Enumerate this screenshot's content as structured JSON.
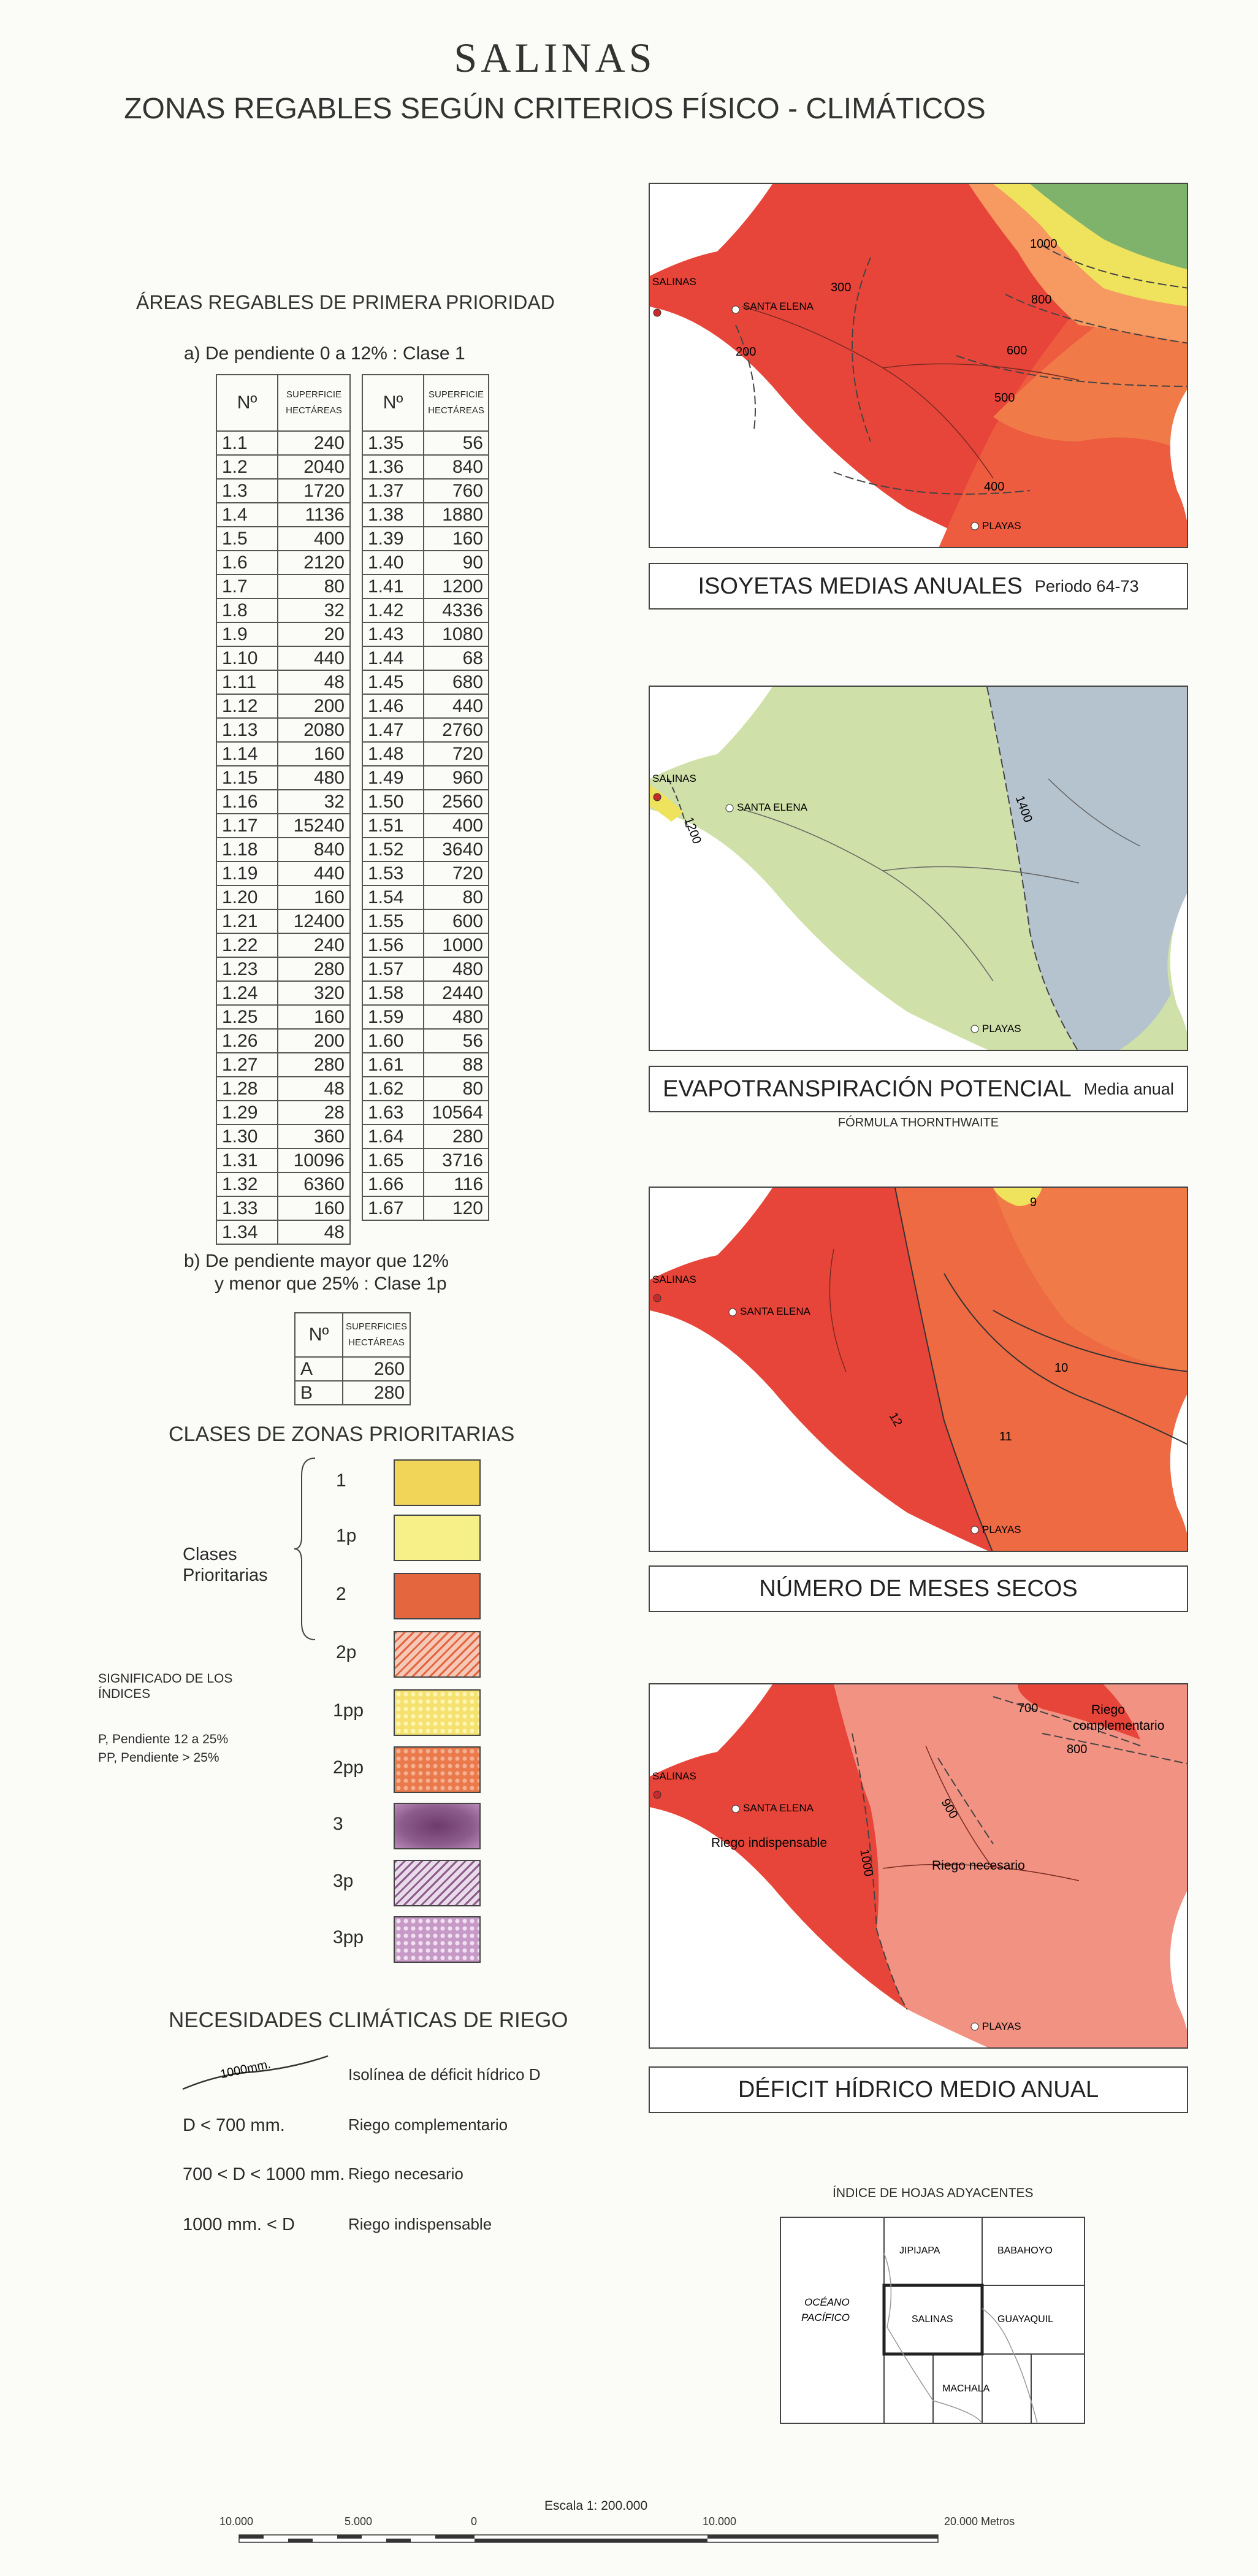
{
  "title": "SALINAS",
  "subtitle": "ZONAS REGABLES SEGÚN CRITERIOS FÍSICO - CLIMÁTICOS",
  "areas": {
    "heading": "ÁREAS REGABLES DE PRIMERA PRIORIDAD",
    "a_label": "a)  De pendiente  0 a 12%  : Clase 1",
    "col_no": "Nº",
    "col_sup_1": "SUPERFICIE",
    "col_sup_2": "HECTÁREAS",
    "table_left": [
      [
        "1.1",
        "240"
      ],
      [
        "1.2",
        "2040"
      ],
      [
        "1.3",
        "1720"
      ],
      [
        "1.4",
        "1136"
      ],
      [
        "1.5",
        "400"
      ],
      [
        "1.6",
        "2120"
      ],
      [
        "1.7",
        "80"
      ],
      [
        "1.8",
        "32"
      ],
      [
        "1.9",
        "20"
      ],
      [
        "1.10",
        "440"
      ],
      [
        "1.11",
        "48"
      ],
      [
        "1.12",
        "200"
      ],
      [
        "1.13",
        "2080"
      ],
      [
        "1.14",
        "160"
      ],
      [
        "1.15",
        "480"
      ],
      [
        "1.16",
        "32"
      ],
      [
        "1.17",
        "15240"
      ],
      [
        "1.18",
        "840"
      ],
      [
        "1.19",
        "440"
      ],
      [
        "1.20",
        "160"
      ],
      [
        "1.21",
        "12400"
      ],
      [
        "1.22",
        "240"
      ],
      [
        "1.23",
        "280"
      ],
      [
        "1.24",
        "320"
      ],
      [
        "1.25",
        "160"
      ],
      [
        "1.26",
        "200"
      ],
      [
        "1.27",
        "280"
      ],
      [
        "1.28",
        "48"
      ],
      [
        "1.29",
        "28"
      ],
      [
        "1.30",
        "360"
      ],
      [
        "1.31",
        "10096"
      ],
      [
        "1.32",
        "6360"
      ],
      [
        "1.33",
        "160"
      ],
      [
        "1.34",
        "48"
      ]
    ],
    "table_right": [
      [
        "1.35",
        "56"
      ],
      [
        "1.36",
        "840"
      ],
      [
        "1.37",
        "760"
      ],
      [
        "1.38",
        "1880"
      ],
      [
        "1.39",
        "160"
      ],
      [
        "1.40",
        "90"
      ],
      [
        "1.41",
        "1200"
      ],
      [
        "1.42",
        "4336"
      ],
      [
        "1.43",
        "1080"
      ],
      [
        "1.44",
        "68"
      ],
      [
        "1.45",
        "680"
      ],
      [
        "1.46",
        "440"
      ],
      [
        "1.47",
        "2760"
      ],
      [
        "1.48",
        "720"
      ],
      [
        "1.49",
        "960"
      ],
      [
        "1.50",
        "2560"
      ],
      [
        "1.51",
        "400"
      ],
      [
        "1.52",
        "3640"
      ],
      [
        "1.53",
        "720"
      ],
      [
        "1.54",
        "80"
      ],
      [
        "1.55",
        "600"
      ],
      [
        "1.56",
        "1000"
      ],
      [
        "1.57",
        "480"
      ],
      [
        "1.58",
        "2440"
      ],
      [
        "1.59",
        "480"
      ],
      [
        "1.60",
        "56"
      ],
      [
        "1.61",
        "88"
      ],
      [
        "1.62",
        "80"
      ],
      [
        "1.63",
        "10564"
      ],
      [
        "1.64",
        "280"
      ],
      [
        "1.65",
        "3716"
      ],
      [
        "1.66",
        "116"
      ],
      [
        "1.67",
        "120"
      ]
    ],
    "b_label_1": "b)  De pendiente mayor que 12%",
    "b_label_2": "y menor que 25% : Clase 1p",
    "col_sup_b_1": "SUPERFICIES",
    "table_b": [
      [
        "A",
        "260"
      ],
      [
        "B",
        "280"
      ]
    ]
  },
  "classes": {
    "heading": "CLASES DE ZONAS PRIORITARIAS",
    "group_label_1": "Clases",
    "group_label_2": "Prioritarias",
    "items": [
      {
        "code": "1",
        "color": "#f0d558"
      },
      {
        "code": "1p",
        "color": "#f7ef88"
      },
      {
        "code": "2",
        "color": "#e4663f"
      },
      {
        "code": "2p",
        "color": "#f6c8b8"
      },
      {
        "code": "1pp",
        "color": "#f5e070"
      },
      {
        "code": "2pp",
        "color": "#ea7a4c"
      },
      {
        "code": "3",
        "color": "#8c5c8c"
      },
      {
        "code": "3p",
        "color": "#e9dbe9"
      },
      {
        "code": "3pp",
        "color": "#c799c7"
      }
    ],
    "significado_1": "SIGNIFICADO DE LOS",
    "significado_2": "ÍNDICES",
    "p_line": "P,  Pendiente  12 a 25%",
    "pp_line": "PP, Pendiente     > 25%"
  },
  "necesidades": {
    "heading": "NECESIDADES CLIMÁTICAS DE RIEGO",
    "iso_value": "1000mm.",
    "rows": [
      {
        "left": "",
        "right": "Isolínea de déficit hídrico D"
      },
      {
        "left": "D <  700 mm.",
        "right": "Riego complementario"
      },
      {
        "left": "700 < D < 1000 mm.",
        "right": "Riego necesario"
      },
      {
        "left": "1000 mm. < D",
        "right": "Riego indispensable"
      }
    ]
  },
  "maps": [
    {
      "caption": "ISOYETAS MEDIAS ANUALES",
      "caption_small": "Periodo 64-73",
      "sub": "",
      "isolines": [
        "1000",
        "800",
        "600",
        "500",
        "300",
        "400",
        "200"
      ]
    },
    {
      "caption": "EVAPOTRANSPIRACIÓN POTENCIAL",
      "caption_small": "Media anual",
      "sub": "FÓRMULA THORNTHWAITE",
      "isolines": [
        "1200",
        "1400"
      ]
    },
    {
      "caption": "NÚMERO   DE MESES SECOS",
      "caption_small": "",
      "sub": "",
      "isolines": [
        "9",
        "10",
        "11",
        "12"
      ]
    },
    {
      "caption": "DÉFICIT HÍDRICO MEDIO ANUAL",
      "caption_small": "",
      "sub": "",
      "isolines": [
        "700",
        "800",
        "900",
        "1000"
      ],
      "zones": [
        "Riego",
        "complementario",
        "Riego indispensable",
        "Riego necesario"
      ]
    }
  ],
  "places": {
    "salinas": "SALINAS",
    "santa_elena": "SANTA ELENA",
    "playas": "PLAYAS"
  },
  "index_map": {
    "heading": "ÍNDICE DE HOJAS ADYACENTES",
    "sheets": [
      "JIPIJAPA",
      "BABAHOYO",
      "SALINAS",
      "GUAYAQUIL",
      "MACHALA"
    ],
    "ocean_1": "OCÉANO",
    "ocean_2": "PACÍFICO"
  },
  "scale": {
    "label": "Escala 1: 200.000",
    "ticks": [
      "10.000",
      "5.000",
      "0",
      "10.000",
      "20.000 Metros"
    ]
  },
  "colors": {
    "red": "#e8453a",
    "orange": "#f07a48",
    "light_orange": "#f79a62",
    "yellow": "#efe25c",
    "green": "#7fb26b",
    "pale_green": "#cfe0a8",
    "blue_gray": "#b5c3cf",
    "pink": "#f29283",
    "salmon": "#f4a090"
  }
}
